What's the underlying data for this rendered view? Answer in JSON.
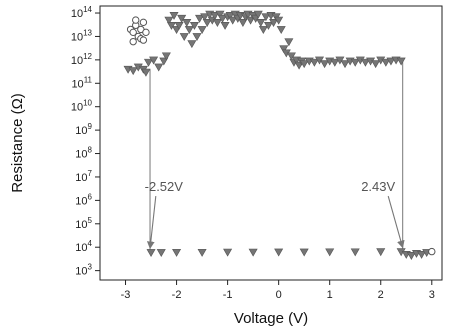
{
  "chart_data": {
    "type": "scatter",
    "title": "",
    "xlabel": "Voltage (V)",
    "ylabel": "Resistance (Ω)",
    "xlim": [
      -3.5,
      3.2
    ],
    "ylim_log10": [
      2.6,
      14.3
    ],
    "y_scale": "log",
    "x_ticks": [
      -3,
      -2,
      -1,
      0,
      1,
      2,
      3
    ],
    "x_tick_labels": [
      "-3",
      "-2",
      "-1",
      "0",
      "1",
      "2",
      "3"
    ],
    "y_ticks_log10": [
      3,
      4,
      5,
      6,
      7,
      8,
      9,
      10,
      11,
      12,
      13,
      14
    ],
    "y_tick_base": "10",
    "grid": false,
    "colors": {
      "markers": "#757575",
      "marker_edge": "#555555",
      "open_circles": "#555555",
      "arrows": "#777777",
      "annotation_text": "#555555"
    },
    "series": [
      {
        "marker": "triangle-down",
        "points": [
          [
            -2.95,
            400000000000.0
          ],
          [
            -2.85,
            350000000000.0
          ],
          [
            -2.75,
            500000000000.0
          ],
          [
            -2.65,
            400000000000.0
          ],
          [
            -2.6,
            300000000000.0
          ],
          [
            -2.55,
            800000000000.0
          ],
          [
            -2.45,
            1000000000000.0
          ],
          [
            -2.35,
            500000000000.0
          ],
          [
            -2.25,
            900000000000.0
          ],
          [
            -2.2,
            1500000000000.0
          ],
          [
            -2.15,
            50000000000000.0
          ],
          [
            -2.1,
            30000000000000.0
          ],
          [
            -2.05,
            80000000000000.0
          ],
          [
            -2.0,
            20000000000000.0
          ],
          [
            -1.95,
            30000000000000.0
          ],
          [
            -1.9,
            60000000000000.0
          ],
          [
            -1.85,
            10000000000000.0
          ],
          [
            -1.8,
            40000000000000.0
          ],
          [
            -1.75,
            20000000000000.0
          ],
          [
            -1.7,
            5000000000000.0
          ],
          [
            -1.65,
            30000000000000.0
          ],
          [
            -1.6,
            10000000000000.0
          ],
          [
            -1.55,
            60000000000000.0
          ],
          [
            -1.5,
            20000000000000.0
          ],
          [
            -1.45,
            70000000000000.0
          ],
          [
            -1.4,
            40000000000000.0
          ],
          [
            -1.35,
            90000000000000.0
          ],
          [
            -1.3,
            50000000000000.0
          ],
          [
            -1.25,
            80000000000000.0
          ],
          [
            -1.2,
            40000000000000.0
          ],
          [
            -1.15,
            90000000000000.0
          ],
          [
            -1.1,
            60000000000000.0
          ],
          [
            -1.05,
            30000000000000.0
          ],
          [
            -1.0,
            70000000000000.0
          ],
          [
            -0.95,
            80000000000000.0
          ],
          [
            -0.9,
            50000000000000.0
          ],
          [
            -0.85,
            90000000000000.0
          ],
          [
            -0.8,
            60000000000000.0
          ],
          [
            -0.75,
            80000000000000.0
          ],
          [
            -0.7,
            40000000000000.0
          ],
          [
            -0.65,
            70000000000000.0
          ],
          [
            -0.6,
            90000000000000.0
          ],
          [
            -0.55,
            50000000000000.0
          ],
          [
            -0.5,
            80000000000000.0
          ],
          [
            -0.45,
            60000000000000.0
          ],
          [
            -0.4,
            90000000000000.0
          ],
          [
            -0.35,
            40000000000000.0
          ],
          [
            -0.3,
            20000000000000.0
          ],
          [
            -0.25,
            70000000000000.0
          ],
          [
            -0.2,
            30000000000000.0
          ],
          [
            -0.15,
            80000000000000.0
          ],
          [
            -0.1,
            40000000000000.0
          ],
          [
            -0.05,
            70000000000000.0
          ],
          [
            0.0,
            50000000000000.0
          ],
          [
            0.05,
            20000000000000.0
          ],
          [
            0.1,
            3000000000000.0
          ],
          [
            0.15,
            2000000000000.0
          ],
          [
            0.2,
            6000000000000.0
          ],
          [
            0.25,
            1500000000000.0
          ],
          [
            0.3,
            800000000000.0
          ],
          [
            0.35,
            1000000000000.0
          ],
          [
            0.4,
            600000000000.0
          ],
          [
            0.45,
            900000000000.0
          ],
          [
            0.5,
            700000000000.0
          ],
          [
            0.6,
            900000000000.0
          ],
          [
            0.7,
            800000000000.0
          ],
          [
            0.8,
            1000000000000.0
          ],
          [
            0.9,
            700000000000.0
          ],
          [
            1.0,
            900000000000.0
          ],
          [
            1.1,
            800000000000.0
          ],
          [
            1.2,
            1000000000000.0
          ],
          [
            1.3,
            700000000000.0
          ],
          [
            1.4,
            900000000000.0
          ],
          [
            1.5,
            800000000000.0
          ],
          [
            1.6,
            1000000000000.0
          ],
          [
            1.7,
            800000000000.0
          ],
          [
            1.8,
            900000000000.0
          ],
          [
            1.9,
            700000000000.0
          ],
          [
            2.0,
            1000000000000.0
          ],
          [
            2.1,
            800000000000.0
          ],
          [
            2.2,
            900000000000.0
          ],
          [
            2.3,
            1000000000000.0
          ],
          [
            2.4,
            900000000000.0
          ],
          [
            -2.5,
            6000.0
          ],
          [
            -2.3,
            6000.0
          ],
          [
            -2.0,
            6100.0
          ],
          [
            -1.5,
            6100.0
          ],
          [
            -1.0,
            6200.0
          ],
          [
            -0.5,
            6200.0
          ],
          [
            0.0,
            6300.0
          ],
          [
            0.5,
            6300.0
          ],
          [
            1.0,
            6400.0
          ],
          [
            1.5,
            6400.0
          ],
          [
            2.0,
            6500.0
          ],
          [
            2.4,
            6500.0
          ],
          [
            2.5,
            5000.0
          ],
          [
            2.6,
            4500.0
          ],
          [
            2.7,
            5500.0
          ],
          [
            2.8,
            5000.0
          ],
          [
            2.9,
            6000.0
          ]
        ]
      },
      {
        "marker": "circle-open",
        "points": [
          [
            -2.9,
            20000000000000.0
          ],
          [
            -2.85,
            15000000000000.0
          ],
          [
            -2.8,
            30000000000000.0
          ],
          [
            -2.75,
            10000000000000.0
          ],
          [
            -2.7,
            20000000000000.0
          ],
          [
            -2.65,
            40000000000000.0
          ],
          [
            -2.6,
            15000000000000.0
          ],
          [
            -2.85,
            6000000000000.0
          ],
          [
            -2.7,
            8000000000000.0
          ],
          [
            -2.8,
            50000000000000.0
          ],
          [
            -2.65,
            7000000000000.0
          ],
          [
            3.0,
            6500.0
          ]
        ]
      }
    ],
    "transitions": [
      {
        "x": -2.52,
        "from_y": 400000000000.0,
        "to_y": 6000.0
      },
      {
        "x": 2.43,
        "from_y": 900000000000.0,
        "to_y": 6500.0
      }
    ],
    "annotations": [
      {
        "text": "-2.52V",
        "target_x": -2.52,
        "target_y": 6000.0,
        "text_x": -2.25,
        "text_y": 2500000.0
      },
      {
        "text": "2.43V",
        "target_x": 2.43,
        "target_y": 6500.0,
        "text_x": 1.95,
        "text_y": 2500000.0
      }
    ]
  }
}
